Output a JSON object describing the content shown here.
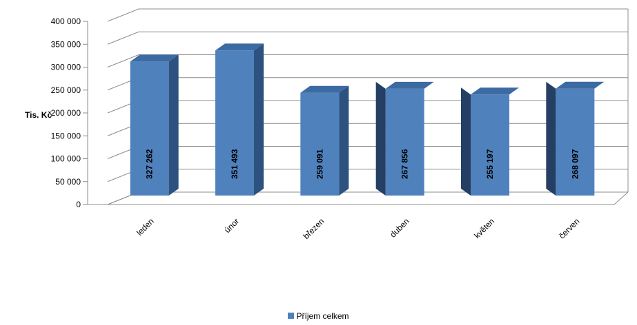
{
  "chart_data": {
    "type": "bar",
    "ylabel": "Tis. Kč",
    "xlabel": "",
    "ylim": [
      0,
      400000
    ],
    "yticks": [
      "0",
      "50 000",
      "100 000",
      "150 000",
      "200 000",
      "250 000",
      "300 000",
      "350 000",
      "400 000"
    ],
    "categories": [
      "leden",
      "únor",
      "březen",
      "duben",
      "květen",
      "červen"
    ],
    "series": [
      {
        "name": "Příjem celkem",
        "values": [
          327262,
          351493,
          259091,
          267856,
          255197,
          268097
        ],
        "labels": [
          "327  262",
          "351  493",
          "259  091",
          "267  856",
          "255  197",
          "268  097"
        ],
        "color": "#4f81bd"
      }
    ],
    "grid": true,
    "legend": "bottom",
    "style": "3d-column"
  }
}
